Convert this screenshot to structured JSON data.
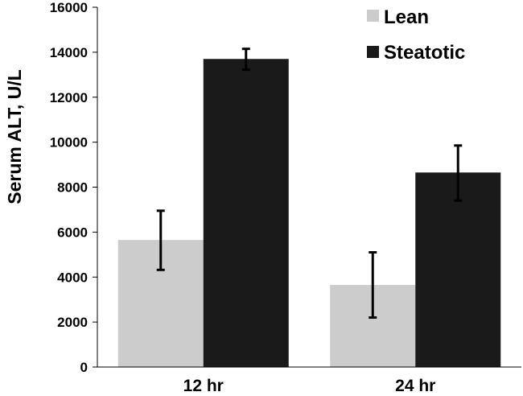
{
  "chart_data": {
    "type": "bar",
    "categories": [
      "12 hr",
      "24 hr"
    ],
    "series": [
      {
        "name": "Lean",
        "values": [
          5650,
          3650
        ],
        "error_low": [
          4320,
          2200
        ],
        "error_high": [
          6950,
          5100
        ],
        "color": "#cccccc"
      },
      {
        "name": "Steatotic",
        "values": [
          13700,
          8650
        ],
        "error_low": [
          13220,
          7400
        ],
        "error_high": [
          14150,
          9850
        ],
        "color": "#1a1a1a"
      }
    ],
    "ylabel": "Serum ALT, U/L",
    "ylim": [
      0,
      16000
    ],
    "yticks": [
      "0",
      "2000",
      "4000",
      "6000",
      "8000",
      "10000",
      "12000",
      "14000",
      "16000"
    ],
    "grid": false,
    "legend_position": "top-right"
  }
}
